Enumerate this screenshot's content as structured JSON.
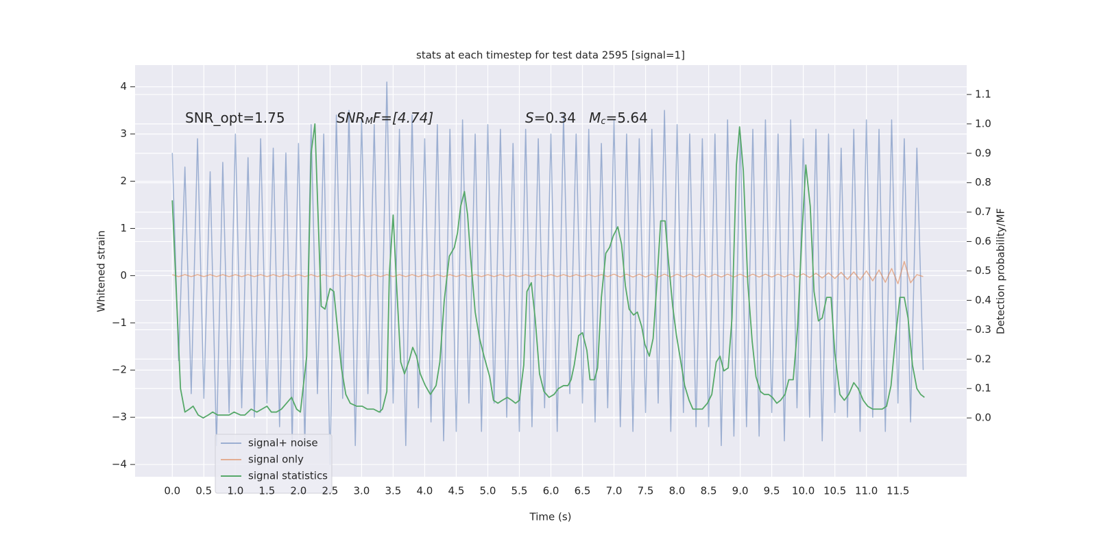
{
  "chart_data": {
    "type": "line",
    "title": "stats at each timestep for test data 2595 [signal=1]",
    "x_label": "Time (s)",
    "y_label": "Whitened strain",
    "y2_label": "Detection probability/MF",
    "annotations": [
      {
        "parts": [
          "SNR_opt=1.75"
        ]
      },
      {
        "parts": [
          "SNR",
          "M",
          "F=[4.74]"
        ]
      },
      {
        "parts": [
          "S",
          "=0.34   ",
          "M",
          "c",
          "=5.64"
        ]
      }
    ],
    "xlim": [
      -0.59,
      12.59
    ],
    "ylim": [
      -4.26,
      4.46
    ],
    "y2lim": [
      -0.2,
      1.2
    ],
    "xticks": [
      {
        "value": 0,
        "label": "0.0"
      },
      0.5,
      {
        "value": 1,
        "label": "1.0"
      },
      1.5,
      {
        "value": 2,
        "label": "2.0"
      },
      2.5,
      {
        "value": 3,
        "label": "3.0"
      },
      3.5,
      {
        "value": 4,
        "label": "4.0"
      },
      4.5,
      {
        "value": 5,
        "label": "5.0"
      },
      5.5,
      {
        "value": 6,
        "label": "6.0"
      },
      6.5,
      {
        "value": 7,
        "label": "7.0"
      },
      7.5,
      {
        "value": 8,
        "label": "8.0"
      },
      8.5,
      {
        "value": 9,
        "label": "9.0"
      },
      9.5,
      {
        "value": 10,
        "label": "10.0"
      },
      10.5,
      {
        "value": 11,
        "label": "11.0"
      },
      11.5
    ],
    "yticks": [
      {
        "value": -4,
        "label": "−4"
      },
      {
        "value": -3,
        "label": "−3"
      },
      {
        "value": -2,
        "label": "−2"
      },
      {
        "value": -1,
        "label": "−1"
      },
      0,
      1,
      2,
      3,
      4
    ],
    "y2ticks": [
      {
        "value": 0,
        "label": "0.0"
      },
      0.1,
      0.2,
      0.3,
      0.4,
      0.5,
      0.6,
      0.7,
      0.8,
      0.9,
      {
        "value": 1,
        "label": "1.0"
      },
      1.1
    ],
    "grid": true,
    "legend": "lower left",
    "series": [
      {
        "name": "signal+ noise",
        "color": "#4c72b0",
        "x": [
          0,
          0.1,
          0.2,
          0.3,
          0.4,
          0.5,
          0.6,
          0.7,
          0.8,
          0.9,
          1,
          1.1,
          1.2,
          1.3,
          1.4,
          1.5,
          1.6,
          1.7,
          1.8,
          1.9,
          2,
          2.1,
          2.2,
          2.3,
          2.4,
          2.5,
          2.6,
          2.7,
          2.8,
          2.9,
          3,
          3.1,
          3.2,
          3.3,
          3.4,
          3.5,
          3.6,
          3.7,
          3.8,
          3.9,
          4,
          4.1,
          4.2,
          4.3,
          4.4,
          4.5,
          4.6,
          4.7,
          4.8,
          4.9,
          5,
          5.1,
          5.2,
          5.3,
          5.4,
          5.5,
          5.6,
          5.7,
          5.8,
          5.9,
          6,
          6.1,
          6.2,
          6.3,
          6.4,
          6.5,
          6.6,
          6.7,
          6.8,
          6.9,
          7,
          7.1,
          7.2,
          7.3,
          7.4,
          7.5,
          7.6,
          7.7,
          7.8,
          7.9,
          8,
          8.1,
          8.2,
          8.3,
          8.4,
          8.5,
          8.6,
          8.7,
          8.8,
          8.9,
          9,
          9.1,
          9.2,
          9.3,
          9.4,
          9.5,
          9.6,
          9.7,
          9.8,
          9.9,
          10,
          10.1,
          10.2,
          10.3,
          10.4,
          10.5,
          10.6,
          10.7,
          10.8,
          10.9,
          11,
          11.1,
          11.2,
          11.3,
          11.4,
          11.5,
          11.6,
          11.7,
          11.8,
          11.9
        ],
        "values": [
          2.6,
          -1.8,
          2.3,
          -2.5,
          2.9,
          -2.6,
          2.2,
          -3.6,
          2.4,
          -2.9,
          3.0,
          -2.8,
          2.5,
          -3.0,
          2.9,
          -2.7,
          2.7,
          -3.2,
          2.6,
          -3.5,
          2.8,
          -3.6,
          3.2,
          -2.5,
          3.0,
          -4.0,
          3.4,
          -2.6,
          3.5,
          -3.6,
          3.3,
          -2.5,
          3.2,
          -2.9,
          4.1,
          -2.7,
          3.1,
          -3.6,
          3.4,
          -2.8,
          2.9,
          -3.1,
          3.2,
          -3.5,
          3.1,
          -3.3,
          3.3,
          -2.7,
          3.0,
          -3.3,
          3.2,
          -2.7,
          3.1,
          -3.0,
          2.8,
          -3.3,
          3.1,
          -3.2,
          2.9,
          -2.8,
          3.0,
          -3.3,
          3.4,
          -2.5,
          3.0,
          -2.7,
          3.1,
          -3.1,
          2.8,
          -2.8,
          3.3,
          -3.2,
          3.0,
          -3.3,
          2.9,
          -2.9,
          3.1,
          -2.7,
          3.5,
          -3.3,
          3.2,
          -2.9,
          3.0,
          -3.2,
          2.9,
          -3.2,
          3.0,
          -3.6,
          3.3,
          -3.4,
          3.0,
          -3.2,
          3.1,
          -3.4,
          3.3,
          -2.9,
          3.0,
          -3.5,
          3.3,
          -2.8,
          2.9,
          -3.0,
          3.1,
          -3.5,
          3.0,
          -2.9,
          2.7,
          -3.0,
          3.1,
          -3.3,
          3.3,
          -3.0,
          3.1,
          -3.3,
          3.3,
          -2.7,
          2.9,
          -3.1,
          2.7,
          -2.0
        ]
      },
      {
        "name": "signal only",
        "color": "#dd8452",
        "x": [
          0,
          0.1,
          0.2,
          0.3,
          0.4,
          0.5,
          0.6,
          0.7,
          0.8,
          0.9,
          1,
          1.1,
          1.2,
          1.3,
          1.4,
          1.5,
          1.6,
          1.7,
          1.8,
          1.9,
          2,
          2.1,
          2.2,
          2.3,
          2.4,
          2.5,
          2.6,
          2.7,
          2.8,
          2.9,
          3,
          3.1,
          3.2,
          3.3,
          3.4,
          3.5,
          3.6,
          3.7,
          3.8,
          3.9,
          4,
          4.1,
          4.2,
          4.3,
          4.4,
          4.5,
          4.6,
          4.7,
          4.8,
          4.9,
          5,
          5.1,
          5.2,
          5.3,
          5.4,
          5.5,
          5.6,
          5.7,
          5.8,
          5.9,
          6,
          6.1,
          6.2,
          6.3,
          6.4,
          6.5,
          6.6,
          6.7,
          6.8,
          6.9,
          7,
          7.1,
          7.2,
          7.3,
          7.4,
          7.5,
          7.6,
          7.7,
          7.8,
          7.9,
          8,
          8.1,
          8.2,
          8.3,
          8.4,
          8.5,
          8.6,
          8.7,
          8.8,
          8.9,
          9,
          9.1,
          9.2,
          9.3,
          9.4,
          9.5,
          9.6,
          9.7,
          9.8,
          9.9,
          10,
          10.1,
          10.2,
          10.3,
          10.4,
          10.5,
          10.6,
          10.7,
          10.8,
          10.9,
          11,
          11.1,
          11.2,
          11.3,
          11.4,
          11.5,
          11.6,
          11.7,
          11.8,
          11.9
        ],
        "values": [
          0.02,
          -0.02,
          0.02,
          -0.02,
          0.02,
          -0.02,
          0.02,
          -0.02,
          0.02,
          -0.02,
          0.02,
          -0.02,
          0.02,
          -0.02,
          0.02,
          -0.02,
          0.02,
          -0.02,
          0.02,
          -0.02,
          0.02,
          -0.02,
          0.02,
          -0.02,
          0.02,
          -0.02,
          0.02,
          -0.02,
          0.02,
          -0.02,
          0.02,
          -0.02,
          0.02,
          -0.02,
          0.02,
          -0.02,
          0.02,
          -0.02,
          0.02,
          -0.02,
          0.02,
          -0.02,
          0.02,
          -0.02,
          0.02,
          -0.02,
          0.02,
          -0.02,
          0.02,
          -0.02,
          0.02,
          -0.02,
          0.02,
          -0.02,
          0.02,
          -0.02,
          0.02,
          -0.02,
          0.02,
          -0.02,
          0.02,
          -0.02,
          0.02,
          -0.02,
          0.02,
          -0.02,
          0.02,
          -0.02,
          0.02,
          -0.02,
          0.03,
          -0.03,
          0.03,
          -0.03,
          0.03,
          -0.03,
          0.03,
          -0.03,
          0.03,
          -0.03,
          0.03,
          -0.03,
          0.03,
          -0.03,
          0.03,
          -0.03,
          0.03,
          -0.03,
          0.03,
          -0.03,
          0.03,
          -0.03,
          0.03,
          -0.03,
          0.03,
          -0.03,
          0.03,
          -0.03,
          0.03,
          -0.03,
          0.04,
          -0.04,
          0.05,
          -0.05,
          0.06,
          -0.06,
          0.07,
          -0.08,
          0.08,
          -0.09,
          0.1,
          -0.11,
          0.12,
          -0.14,
          0.15,
          -0.17,
          0.3,
          -0.15,
          0.02,
          -0.02
        ]
      },
      {
        "name": "signal statistics",
        "color": "#55a868",
        "axis": "y2",
        "x": [
          0,
          0.13,
          0.2,
          0.27,
          0.33,
          0.41,
          0.49,
          0.57,
          0.64,
          0.72,
          0.8,
          0.9,
          0.98,
          1.08,
          1.15,
          1.25,
          1.34,
          1.42,
          1.5,
          1.57,
          1.65,
          1.73,
          1.81,
          1.89,
          1.97,
          2.03,
          2.13,
          2.2,
          2.26,
          2.3,
          2.36,
          2.42,
          2.5,
          2.56,
          2.62,
          2.68,
          2.75,
          2.82,
          2.92,
          3.01,
          3.09,
          3.19,
          3.28,
          3.33,
          3.4,
          3.44,
          3.5,
          3.55,
          3.62,
          3.68,
          3.76,
          3.81,
          3.87,
          3.93,
          4.01,
          4.09,
          4.18,
          4.24,
          4.31,
          4.39,
          4.47,
          4.52,
          4.57,
          4.63,
          4.68,
          4.73,
          4.8,
          4.87,
          4.94,
          5.03,
          5.09,
          5.16,
          5.23,
          5.31,
          5.38,
          5.44,
          5.5,
          5.57,
          5.62,
          5.69,
          5.75,
          5.82,
          5.89,
          5.97,
          6.05,
          6.12,
          6.2,
          6.27,
          6.32,
          6.37,
          6.44,
          6.5,
          6.57,
          6.62,
          6.69,
          6.74,
          6.8,
          6.87,
          6.93,
          6.99,
          7.06,
          7.12,
          7.18,
          7.24,
          7.31,
          7.37,
          7.44,
          7.49,
          7.56,
          7.62,
          7.68,
          7.74,
          7.81,
          7.86,
          7.93,
          7.99,
          8.06,
          8.12,
          8.19,
          8.25,
          8.33,
          8.4,
          8.48,
          8.55,
          8.62,
          8.68,
          8.74,
          8.81,
          8.87,
          8.94,
          8.99,
          9.05,
          9.12,
          9.19,
          9.25,
          9.32,
          9.38,
          9.45,
          9.51,
          9.58,
          9.64,
          9.71,
          9.77,
          9.84,
          9.91,
          9.98,
          10.04,
          10.11,
          10.17,
          10.24,
          10.3,
          10.37,
          10.44,
          10.5,
          10.58,
          10.65,
          10.72,
          10.8,
          10.87,
          10.95,
          11.02,
          11.1,
          11.17,
          11.25,
          11.32,
          11.39,
          11.46,
          11.53,
          11.6,
          11.66,
          11.73,
          11.8,
          11.86,
          11.92
        ],
        "values": [
          0.74,
          0.1,
          0.02,
          0.03,
          0.04,
          0.01,
          0.0,
          0.01,
          0.02,
          0.01,
          0.01,
          0.01,
          0.02,
          0.01,
          0.01,
          0.03,
          0.02,
          0.03,
          0.04,
          0.02,
          0.02,
          0.03,
          0.05,
          0.07,
          0.03,
          0.02,
          0.21,
          0.9,
          1.0,
          0.75,
          0.38,
          0.37,
          0.44,
          0.43,
          0.3,
          0.17,
          0.08,
          0.05,
          0.04,
          0.04,
          0.03,
          0.03,
          0.02,
          0.03,
          0.09,
          0.49,
          0.69,
          0.47,
          0.19,
          0.15,
          0.2,
          0.24,
          0.21,
          0.15,
          0.11,
          0.08,
          0.11,
          0.19,
          0.4,
          0.55,
          0.58,
          0.63,
          0.72,
          0.77,
          0.69,
          0.54,
          0.36,
          0.27,
          0.21,
          0.14,
          0.06,
          0.05,
          0.06,
          0.07,
          0.06,
          0.05,
          0.06,
          0.18,
          0.43,
          0.46,
          0.34,
          0.15,
          0.09,
          0.07,
          0.08,
          0.1,
          0.11,
          0.11,
          0.13,
          0.18,
          0.28,
          0.29,
          0.23,
          0.13,
          0.13,
          0.17,
          0.41,
          0.56,
          0.58,
          0.62,
          0.65,
          0.59,
          0.45,
          0.37,
          0.35,
          0.36,
          0.31,
          0.25,
          0.21,
          0.27,
          0.46,
          0.67,
          0.67,
          0.54,
          0.38,
          0.28,
          0.19,
          0.11,
          0.06,
          0.03,
          0.03,
          0.03,
          0.05,
          0.08,
          0.19,
          0.21,
          0.16,
          0.17,
          0.34,
          0.86,
          0.99,
          0.84,
          0.46,
          0.26,
          0.14,
          0.09,
          0.08,
          0.08,
          0.07,
          0.05,
          0.06,
          0.08,
          0.13,
          0.13,
          0.31,
          0.63,
          0.86,
          0.72,
          0.43,
          0.33,
          0.34,
          0.41,
          0.41,
          0.22,
          0.08,
          0.06,
          0.08,
          0.12,
          0.1,
          0.06,
          0.04,
          0.03,
          0.03,
          0.03,
          0.04,
          0.11,
          0.27,
          0.41,
          0.41,
          0.34,
          0.18,
          0.1,
          0.08,
          0.07
        ]
      }
    ]
  }
}
